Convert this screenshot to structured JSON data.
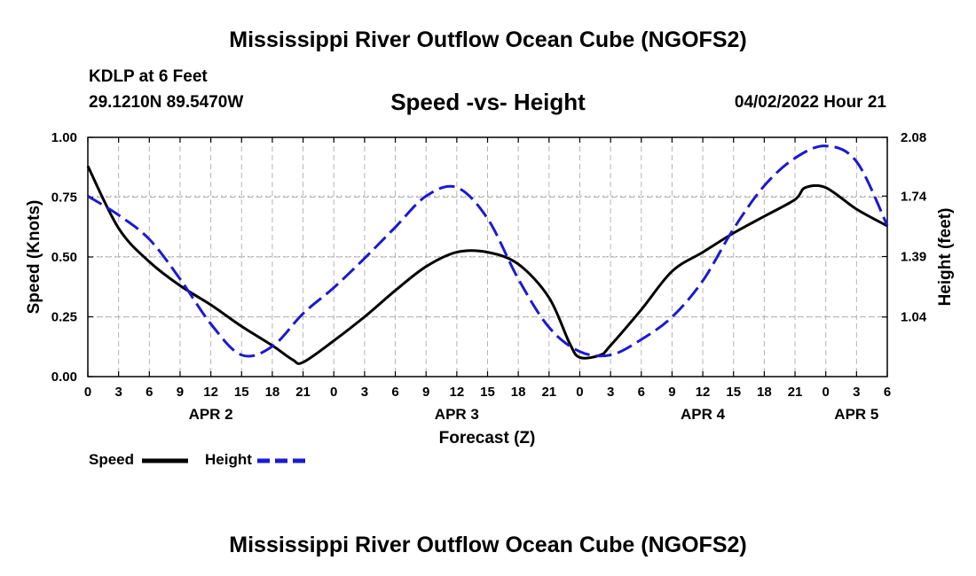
{
  "header": {
    "title": "Mississippi River Outflow Ocean Cube (NGOFS2)",
    "station": "KDLP at 6 Feet",
    "coordinates": "29.1210N  89.5470W",
    "subtitle": "Speed -vs- Height",
    "datetime": "04/02/2022 Hour 21"
  },
  "footer": {
    "title": "Mississippi River Outflow Ocean Cube (NGOFS2)"
  },
  "legend": {
    "speed_label": "Speed",
    "height_label": "Height"
  },
  "chart_data": {
    "type": "line",
    "title": "Speed -vs- Height",
    "xlabel": "Forecast (Z)",
    "ylabel": "Speed (Knots)",
    "y2label": "Height (feet)",
    "x_unit": "forecast hours from 00Z APR 2",
    "xlim": [
      0,
      78
    ],
    "ylim": [
      0,
      1.0
    ],
    "y2lim": [
      0.695,
      2.08
    ],
    "x_ticks": [
      0,
      3,
      6,
      9,
      12,
      15,
      18,
      21,
      24,
      27,
      30,
      33,
      36,
      39,
      42,
      45,
      48,
      51,
      54,
      57,
      60,
      63,
      66,
      69,
      72,
      75,
      78
    ],
    "x_tick_labels": [
      "0",
      "3",
      "6",
      "9",
      "12",
      "15",
      "18",
      "21",
      "0",
      "3",
      "6",
      "9",
      "12",
      "15",
      "18",
      "21",
      "0",
      "3",
      "6",
      "9",
      "12",
      "15",
      "18",
      "21",
      "0",
      "3",
      "6"
    ],
    "day_labels": [
      {
        "x": 12,
        "label": "APR 2"
      },
      {
        "x": 36,
        "label": "APR 3"
      },
      {
        "x": 60,
        "label": "APR 4"
      },
      {
        "x": 75,
        "label": "APR 5"
      }
    ],
    "y_ticks": [
      0.0,
      0.25,
      0.5,
      0.75,
      1.0
    ],
    "y_tick_labels": [
      "0.00",
      "0.25",
      "0.50",
      "0.75",
      "1.00"
    ],
    "y2_ticks": [
      1.04,
      1.39,
      1.74,
      2.08
    ],
    "y2_tick_labels": [
      "1.04",
      "1.39",
      "1.74",
      "2.08"
    ],
    "grid": true,
    "legend_position": "bottom-left",
    "series": [
      {
        "name": "Speed",
        "axis": "left",
        "color": "#000000",
        "style": "solid",
        "x": [
          0,
          3,
          6,
          9,
          12,
          15,
          18,
          20,
          21,
          24,
          27,
          30,
          33,
          36,
          39,
          42,
          45,
          47,
          48,
          50,
          51,
          54,
          57,
          60,
          63,
          66,
          69,
          70,
          72,
          75,
          78
        ],
        "values": [
          0.88,
          0.62,
          0.48,
          0.38,
          0.3,
          0.21,
          0.13,
          0.07,
          0.06,
          0.15,
          0.25,
          0.36,
          0.46,
          0.52,
          0.52,
          0.47,
          0.33,
          0.14,
          0.08,
          0.09,
          0.13,
          0.28,
          0.44,
          0.52,
          0.6,
          0.67,
          0.74,
          0.79,
          0.79,
          0.7,
          0.63
        ]
      },
      {
        "name": "Height",
        "axis": "right",
        "color": "#1a1ad0",
        "style": "dashed",
        "x": [
          0,
          3,
          6,
          9,
          12,
          15,
          18,
          21,
          24,
          27,
          30,
          33,
          36,
          39,
          42,
          45,
          48,
          51,
          54,
          57,
          60,
          63,
          66,
          69,
          72,
          75,
          78
        ],
        "values": [
          1.74,
          1.63,
          1.49,
          1.26,
          1.0,
          0.82,
          0.87,
          1.06,
          1.21,
          1.38,
          1.56,
          1.74,
          1.79,
          1.61,
          1.26,
          0.98,
          0.84,
          0.82,
          0.91,
          1.04,
          1.25,
          1.55,
          1.8,
          1.96,
          2.03,
          1.94,
          1.57
        ]
      }
    ]
  }
}
